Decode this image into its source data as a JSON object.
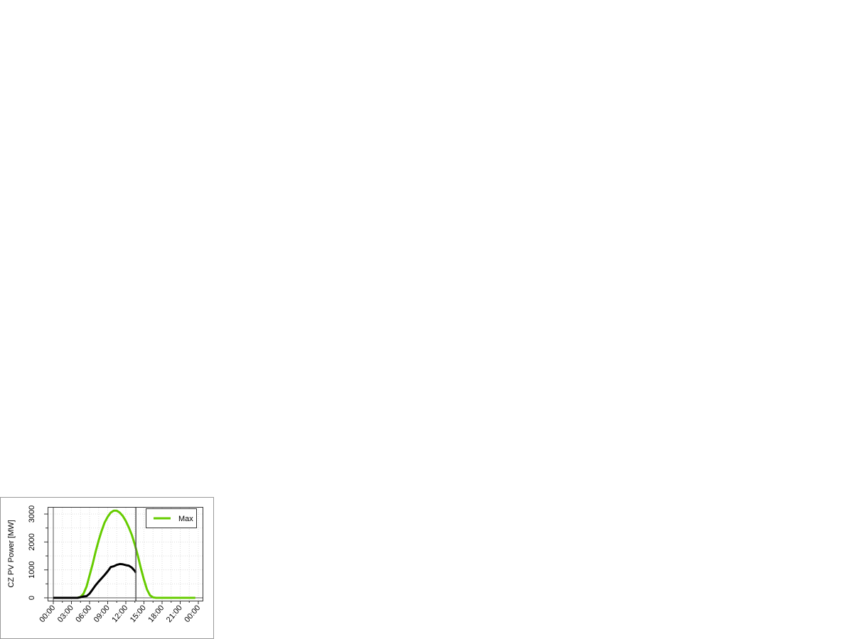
{
  "chart_data": {
    "type": "line",
    "title": "",
    "xlabel": "",
    "ylabel": "CZ PV Power [MW]",
    "xlim": [
      "00:00",
      "24:00"
    ],
    "ylim": [
      0,
      3200
    ],
    "x_tick_labels": [
      "00:00",
      "03:00",
      "06:00",
      "09:00",
      "12:00",
      "15:00",
      "18:00",
      "21:00",
      "00:00"
    ],
    "y_tick_labels": [
      "0",
      "1000",
      "2000",
      "3000"
    ],
    "y_ticks": [
      0,
      1000,
      2000,
      3000
    ],
    "grid": true,
    "legend_position": "top-right",
    "current_time_marker": "13:40",
    "series": [
      {
        "name": "Max",
        "color": "#66cc00",
        "x_hours": [
          0,
          4,
          4.5,
          5,
          5.5,
          6,
          6.5,
          7,
          7.5,
          8,
          8.5,
          9,
          9.5,
          10,
          10.5,
          11,
          11.5,
          12,
          12.5,
          13,
          13.5,
          14,
          14.5,
          15,
          15.5,
          16,
          16.5,
          17,
          17.5,
          18,
          19,
          20,
          21,
          22,
          23,
          23.5
        ],
        "values": [
          0,
          0,
          30,
          150,
          400,
          800,
          1200,
          1650,
          2050,
          2400,
          2700,
          2900,
          3050,
          3120,
          3120,
          3050,
          2930,
          2750,
          2520,
          2250,
          1900,
          1500,
          1050,
          650,
          300,
          90,
          15,
          0,
          0,
          0,
          0,
          0,
          0,
          0,
          0,
          0
        ]
      },
      {
        "name": "",
        "color": "#000000",
        "x_hours": [
          0,
          4,
          4.5,
          5,
          5.5,
          6,
          6.5,
          7,
          7.5,
          8,
          8.5,
          9,
          9.5,
          10,
          10.5,
          11,
          11.5,
          12,
          12.5,
          13,
          13.5,
          13.67
        ],
        "values": [
          0,
          0,
          20,
          50,
          60,
          150,
          300,
          450,
          580,
          700,
          820,
          950,
          1100,
          1130,
          1180,
          1210,
          1200,
          1170,
          1150,
          1080,
          960,
          900
        ]
      }
    ]
  }
}
